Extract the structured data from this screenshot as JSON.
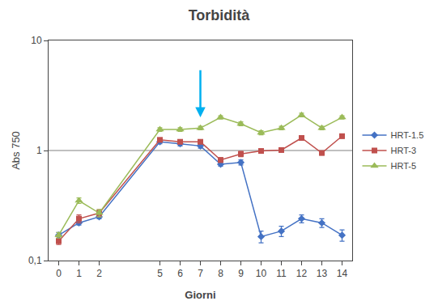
{
  "chart_data": {
    "type": "line",
    "title": "Torbidità",
    "xlabel": "Giorni",
    "ylabel": "Abs 750",
    "x": [
      0,
      1,
      2,
      5,
      6,
      7,
      8,
      9,
      10,
      11,
      12,
      13,
      14
    ],
    "series": [
      {
        "name": "HRT-1.5",
        "color": "#4472C4",
        "marker": "diamond",
        "values": [
          0.17,
          0.22,
          0.25,
          1.2,
          1.15,
          1.1,
          0.75,
          0.78,
          0.165,
          0.185,
          0.24,
          0.22,
          0.17
        ],
        "errors": [
          0.01,
          0.01,
          0.01,
          0.05,
          0.05,
          0.05,
          0.03,
          0.04,
          0.02,
          0.02,
          0.02,
          0.02,
          0.02
        ]
      },
      {
        "name": "HRT-3",
        "color": "#C0504D",
        "marker": "square",
        "values": [
          0.15,
          0.24,
          0.27,
          1.25,
          1.2,
          1.2,
          0.82,
          0.93,
          0.99,
          1.01,
          1.3,
          0.95,
          1.35
        ],
        "errors": [
          0.01,
          0.02,
          0.02,
          0.05,
          0.05,
          0.05,
          0.04,
          0.05,
          0.04,
          0.04,
          0.06,
          0.04,
          0.06
        ]
      },
      {
        "name": "HRT-5",
        "color": "#9BBB59",
        "marker": "triangle-up",
        "values": [
          0.17,
          0.35,
          0.27,
          1.55,
          1.55,
          1.6,
          2.0,
          1.75,
          1.45,
          1.6,
          2.1,
          1.6,
          2.0
        ],
        "errors": [
          0.01,
          0.02,
          0.02,
          0.06,
          0.06,
          0.06,
          0.07,
          0.07,
          0.06,
          0.06,
          0.08,
          0.06,
          0.07
        ]
      }
    ],
    "xlim": [
      -0.5,
      14.5
    ],
    "xticks": [
      0,
      1,
      2,
      5,
      6,
      7,
      8,
      9,
      10,
      11,
      12,
      13,
      14
    ],
    "log": "y",
    "ylim": [
      0.1,
      10
    ],
    "yticks": [
      {
        "value": 0.1,
        "label": "0,1"
      },
      1,
      10
    ],
    "reference_lines": [
      {
        "y": 1
      }
    ],
    "annotations": [
      {
        "type": "arrow",
        "x": 7,
        "y": 2.0,
        "y_start": 5.5,
        "color": "#00B0F0"
      }
    ],
    "grid": false,
    "legend": "right"
  }
}
